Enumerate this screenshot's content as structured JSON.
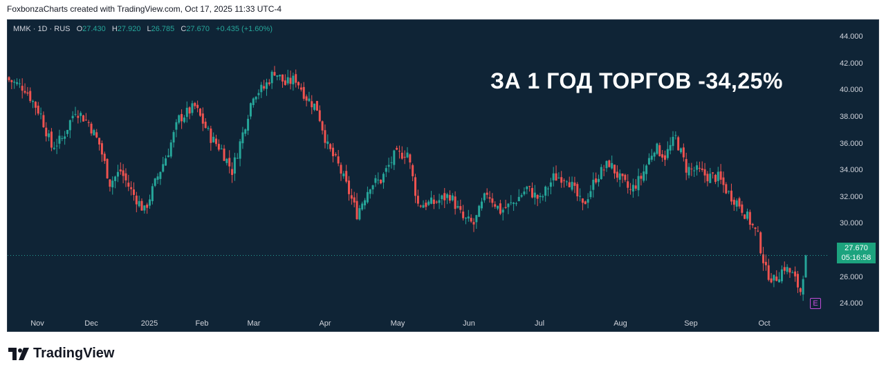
{
  "caption": "FoxbonzaCharts created with TradingView.com, Oct 17, 2025 11:33 UTC-4",
  "brand": {
    "name": "TradingView",
    "icon": "tradingview-logo-icon"
  },
  "legend": {
    "symbol": "MMK · 1D · RUS",
    "o_label": "O",
    "o_value": "27.430",
    "h_label": "H",
    "h_value": "27.920",
    "l_label": "L",
    "l_value": "26.785",
    "c_label": "C",
    "c_value": "27.670",
    "change": "+0.435 (+1.60%)"
  },
  "annotation": "ЗА 1 ГОД ТОРГОВ -34,25%",
  "price_tag": {
    "price": "27.670",
    "countdown": "05:16:58"
  },
  "earnings_marker": {
    "label": "E"
  },
  "colors": {
    "background": "#0f2436",
    "up": "#26a69a",
    "down": "#ef5350",
    "text": "#d1d4dc",
    "tag": "#1ca37e"
  },
  "chart_data": {
    "type": "candlestick",
    "y_ticks": [
      "44.000",
      "42.000",
      "40.000",
      "38.000",
      "36.000",
      "34.000",
      "32.000",
      "30.000",
      "28.000",
      "26.000",
      "24.000"
    ],
    "x_ticks": [
      "Nov",
      "Dec",
      "2025",
      "Feb",
      "Mar",
      "Apr",
      "May",
      "Jun",
      "Jul",
      "Aug",
      "Sep",
      "Oct"
    ],
    "ylim": [
      22.0,
      45.3
    ],
    "last_price": 27.67,
    "close_path": [
      [
        0,
        40.8
      ],
      [
        6,
        40.2
      ],
      [
        12,
        38.2
      ],
      [
        16,
        35.8
      ],
      [
        20,
        36.4
      ],
      [
        25,
        38.6
      ],
      [
        30,
        37.6
      ],
      [
        34,
        36.0
      ],
      [
        38,
        33.1
      ],
      [
        42,
        34.0
      ],
      [
        46,
        32.5
      ],
      [
        51,
        31.0
      ],
      [
        56,
        33.6
      ],
      [
        60,
        35.5
      ],
      [
        64,
        37.9
      ],
      [
        70,
        38.8
      ],
      [
        76,
        36.5
      ],
      [
        80,
        35.6
      ],
      [
        84,
        34.0
      ],
      [
        88,
        36.8
      ],
      [
        92,
        39.8
      ],
      [
        96,
        40.2
      ],
      [
        100,
        41.5
      ],
      [
        104,
        40.5
      ],
      [
        108,
        40.9
      ],
      [
        112,
        39.5
      ],
      [
        116,
        38.7
      ],
      [
        120,
        35.8
      ],
      [
        124,
        34.4
      ],
      [
        128,
        32.4
      ],
      [
        131,
        30.8
      ],
      [
        136,
        33.0
      ],
      [
        140,
        33.3
      ],
      [
        145,
        35.1
      ],
      [
        150,
        35.4
      ],
      [
        154,
        31.5
      ],
      [
        160,
        31.6
      ],
      [
        166,
        32.2
      ],
      [
        171,
        30.4
      ],
      [
        175,
        30.0
      ],
      [
        180,
        32.4
      ],
      [
        185,
        31.0
      ],
      [
        190,
        31.6
      ],
      [
        195,
        32.7
      ],
      [
        200,
        31.8
      ],
      [
        205,
        33.5
      ],
      [
        210,
        33.6
      ],
      [
        216,
        31.3
      ],
      [
        221,
        33.5
      ],
      [
        226,
        34.6
      ],
      [
        230,
        33.4
      ],
      [
        234,
        32.5
      ],
      [
        238,
        33.5
      ],
      [
        243,
        35.8
      ],
      [
        247,
        35.1
      ],
      [
        251,
        36.5
      ],
      [
        255,
        34.2
      ],
      [
        259,
        34.0
      ],
      [
        263,
        33.6
      ],
      [
        267,
        33.5
      ],
      [
        271,
        32.3
      ],
      [
        275,
        31.5
      ],
      [
        279,
        30.2
      ],
      [
        282,
        29.1
      ],
      [
        285,
        26.5
      ],
      [
        288,
        25.8
      ],
      [
        292,
        26.8
      ],
      [
        295,
        26.2
      ],
      [
        298,
        25.0
      ],
      [
        300,
        27.67
      ]
    ]
  }
}
